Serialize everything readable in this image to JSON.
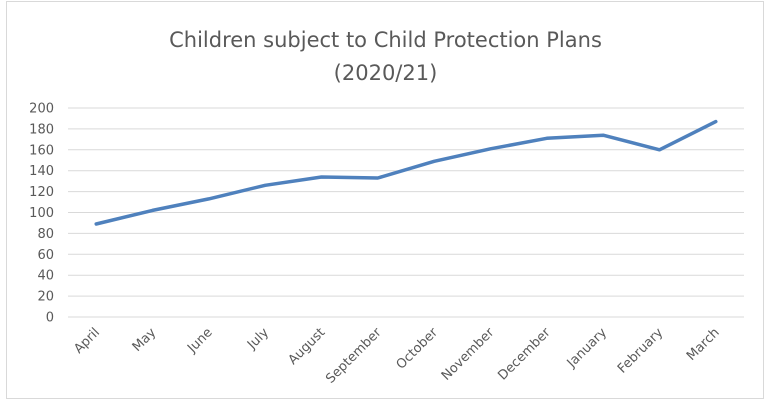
{
  "chart_data": {
    "type": "line",
    "title_lines": [
      "Children subject to Child Protection Plans",
      "(2020/21)"
    ],
    "categories": [
      "April",
      "May",
      "June",
      "July",
      "August",
      "September",
      "October",
      "November",
      "December",
      "January",
      "February",
      "March"
    ],
    "series": [
      {
        "values": [
          89,
          102,
          113,
          126,
          134,
          133,
          149,
          161,
          171,
          174,
          160,
          187
        ],
        "color": "#4f81bd"
      }
    ],
    "ylim": [
      0,
      200
    ],
    "yticks": [
      0,
      20,
      40,
      60,
      80,
      100,
      120,
      140,
      160,
      180,
      200
    ],
    "grid": true,
    "gridline_color": "#d9d9d9",
    "text_color": "#595959"
  }
}
